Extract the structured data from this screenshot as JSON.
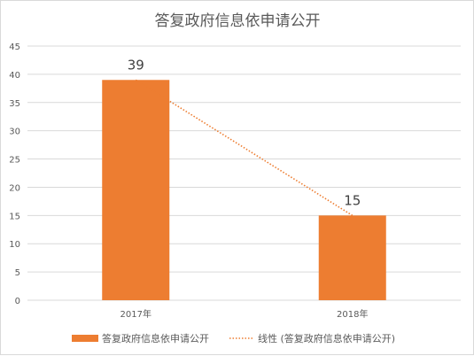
{
  "chart_data": {
    "type": "bar",
    "title": "答复政府信息依申请公开",
    "categories": [
      "2017年",
      "2018年"
    ],
    "series": [
      {
        "name": "答复政府信息依申请公开",
        "values": [
          39,
          15
        ]
      }
    ],
    "trendline": {
      "name": "线性 (答复政府信息依申请公开)",
      "type": "linear"
    },
    "data_labels": [
      "39",
      "15"
    ],
    "yticks": [
      "0",
      "5",
      "10",
      "15",
      "20",
      "25",
      "30",
      "35",
      "40",
      "45"
    ],
    "ylim": [
      0,
      45
    ],
    "grid": true,
    "legend_position": "bottom",
    "colors": {
      "bar": "#ED7D31",
      "trend": "#ED7D31",
      "grid": "#D9D9D9"
    }
  }
}
